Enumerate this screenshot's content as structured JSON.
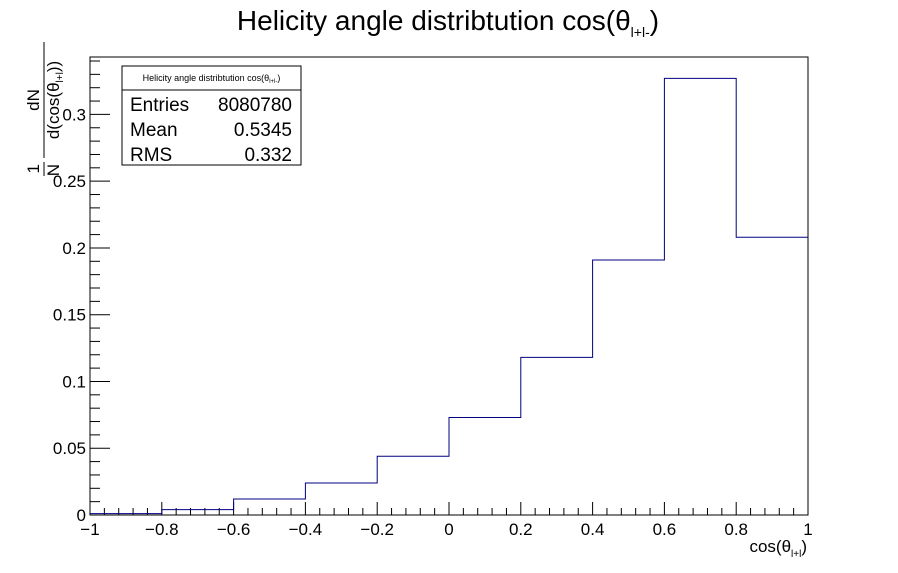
{
  "chart_data": {
    "type": "bar",
    "style": "step-histogram",
    "title": "Helicity angle distribtution cos(θ_{l+l-})",
    "title_parts": {
      "main": "Helicity angle distribtution cos(θ",
      "sub": "l+l-",
      "close": ")"
    },
    "xlabel": "cos(θ_{l+l})",
    "xlabel_parts": {
      "main": "cos(θ",
      "sub": "l+l",
      "close": ")"
    },
    "ylabel": "1/N dN/d(cos(θ_{l+l}))",
    "ylabel_parts": {
      "one": "1",
      "n": "N",
      "dn": "dN",
      "den_main": "d(cos(θ",
      "den_sub": "l+l",
      "den_close": "))"
    },
    "xlim": [
      -1,
      1
    ],
    "ylim": [
      0,
      0.343
    ],
    "bin_edges": [
      -1,
      -0.8,
      -0.6,
      -0.4,
      -0.2,
      0,
      0.2,
      0.4,
      0.6,
      0.8,
      1
    ],
    "values": [
      0.001,
      0.004,
      0.012,
      0.024,
      0.044,
      0.073,
      0.118,
      0.191,
      0.327,
      0.208
    ],
    "x_ticks": [
      -1,
      -0.8,
      -0.6,
      -0.4,
      -0.2,
      0,
      0.2,
      0.4,
      0.6,
      0.8,
      1
    ],
    "x_tick_labels": [
      "−1",
      "−0.8",
      "−0.6",
      "−0.4",
      "−0.2",
      "0",
      "0.2",
      "0.4",
      "0.6",
      "0.8",
      "1"
    ],
    "y_ticks": [
      0,
      0.05,
      0.1,
      0.15,
      0.2,
      0.25,
      0.3
    ],
    "y_tick_labels": [
      "0",
      "0.05",
      "0.1",
      "0.15",
      "0.2",
      "0.25",
      "0.3"
    ],
    "line_color": "#000080",
    "grid": false,
    "stats_box": {
      "position": "top-left",
      "title_main": "Helicity angle distribtution cos(θ",
      "title_sub": "l+l-",
      "title_close": ")",
      "rows": [
        {
          "label": "Entries",
          "value": "8080780"
        },
        {
          "label": "Mean",
          "value": "0.5345"
        },
        {
          "label": "RMS",
          "value": "0.332"
        }
      ]
    }
  }
}
